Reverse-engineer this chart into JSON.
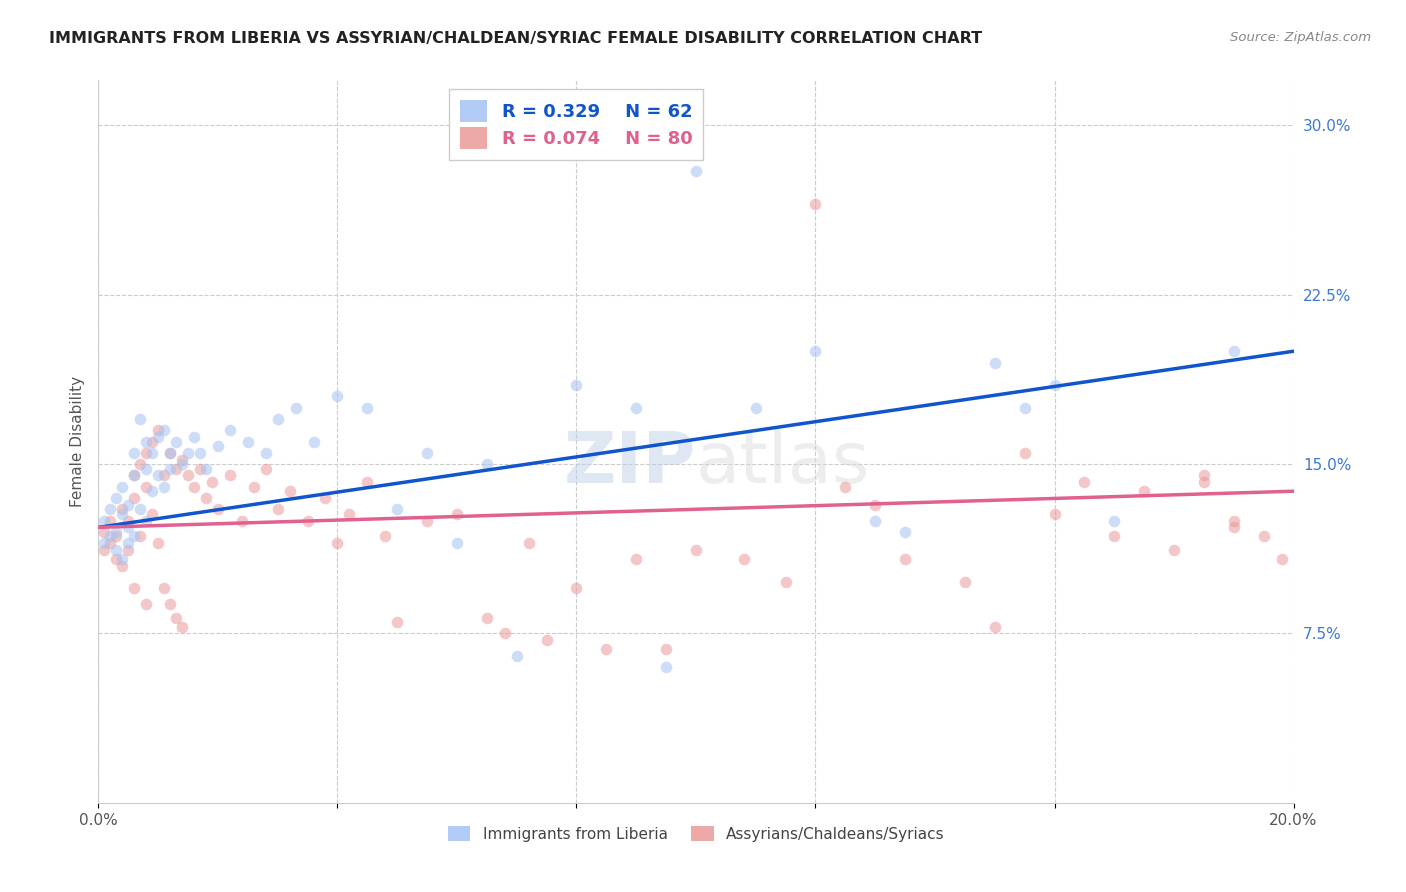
{
  "title": "IMMIGRANTS FROM LIBERIA VS ASSYRIAN/CHALDEAN/SYRIAC FEMALE DISABILITY CORRELATION CHART",
  "source": "Source: ZipAtlas.com",
  "ylabel": "Female Disability",
  "xlim": [
    0.0,
    0.2
  ],
  "ylim": [
    0.0,
    0.32
  ],
  "xtick_positions": [
    0.0,
    0.04,
    0.08,
    0.12,
    0.16,
    0.2
  ],
  "xticklabels": [
    "0.0%",
    "",
    "",
    "",
    "",
    "20.0%"
  ],
  "yticks_right": [
    0.075,
    0.15,
    0.225,
    0.3
  ],
  "ytick_labels_right": [
    "7.5%",
    "15.0%",
    "22.5%",
    "30.0%"
  ],
  "R_blue": 0.329,
  "N_blue": 62,
  "R_pink": 0.074,
  "N_pink": 80,
  "blue_color": "#a4c2f4",
  "pink_color": "#ea9999",
  "blue_line_color": "#1155cc",
  "pink_line_color": "#e06090",
  "legend_blue_label": "Immigrants from Liberia",
  "legend_pink_label": "Assyrians/Chaldeans/Syriacs",
  "blue_scatter_x": [
    0.001,
    0.001,
    0.002,
    0.002,
    0.003,
    0.003,
    0.003,
    0.004,
    0.004,
    0.004,
    0.005,
    0.005,
    0.005,
    0.006,
    0.006,
    0.006,
    0.007,
    0.007,
    0.008,
    0.008,
    0.008,
    0.009,
    0.009,
    0.01,
    0.01,
    0.011,
    0.011,
    0.012,
    0.012,
    0.013,
    0.014,
    0.015,
    0.016,
    0.017,
    0.018,
    0.02,
    0.022,
    0.025,
    0.028,
    0.03,
    0.033,
    0.036,
    0.04,
    0.045,
    0.05,
    0.055,
    0.06,
    0.065,
    0.07,
    0.08,
    0.09,
    0.095,
    0.1,
    0.11,
    0.12,
    0.13,
    0.135,
    0.15,
    0.155,
    0.16,
    0.17,
    0.19
  ],
  "blue_scatter_y": [
    0.115,
    0.125,
    0.118,
    0.13,
    0.12,
    0.112,
    0.135,
    0.108,
    0.128,
    0.14,
    0.122,
    0.132,
    0.115,
    0.118,
    0.145,
    0.155,
    0.13,
    0.17,
    0.125,
    0.148,
    0.16,
    0.138,
    0.155,
    0.145,
    0.162,
    0.14,
    0.165,
    0.148,
    0.155,
    0.16,
    0.15,
    0.155,
    0.162,
    0.155,
    0.148,
    0.158,
    0.165,
    0.16,
    0.155,
    0.17,
    0.175,
    0.16,
    0.18,
    0.175,
    0.13,
    0.155,
    0.115,
    0.15,
    0.065,
    0.185,
    0.175,
    0.06,
    0.28,
    0.175,
    0.2,
    0.125,
    0.12,
    0.195,
    0.175,
    0.185,
    0.125,
    0.2
  ],
  "pink_scatter_x": [
    0.001,
    0.001,
    0.002,
    0.002,
    0.003,
    0.003,
    0.004,
    0.004,
    0.005,
    0.005,
    0.006,
    0.006,
    0.006,
    0.007,
    0.007,
    0.008,
    0.008,
    0.008,
    0.009,
    0.009,
    0.01,
    0.01,
    0.011,
    0.011,
    0.012,
    0.012,
    0.013,
    0.013,
    0.014,
    0.014,
    0.015,
    0.016,
    0.017,
    0.018,
    0.019,
    0.02,
    0.022,
    0.024,
    0.026,
    0.028,
    0.03,
    0.032,
    0.035,
    0.038,
    0.04,
    0.042,
    0.045,
    0.048,
    0.05,
    0.055,
    0.06,
    0.065,
    0.068,
    0.072,
    0.075,
    0.08,
    0.085,
    0.09,
    0.095,
    0.1,
    0.108,
    0.115,
    0.12,
    0.125,
    0.13,
    0.135,
    0.145,
    0.15,
    0.155,
    0.16,
    0.165,
    0.17,
    0.175,
    0.18,
    0.185,
    0.19,
    0.195,
    0.198,
    0.19,
    0.185
  ],
  "pink_scatter_y": [
    0.112,
    0.12,
    0.115,
    0.125,
    0.118,
    0.108,
    0.13,
    0.105,
    0.125,
    0.112,
    0.145,
    0.135,
    0.095,
    0.15,
    0.118,
    0.155,
    0.14,
    0.088,
    0.16,
    0.128,
    0.165,
    0.115,
    0.145,
    0.095,
    0.155,
    0.088,
    0.148,
    0.082,
    0.152,
    0.078,
    0.145,
    0.14,
    0.148,
    0.135,
    0.142,
    0.13,
    0.145,
    0.125,
    0.14,
    0.148,
    0.13,
    0.138,
    0.125,
    0.135,
    0.115,
    0.128,
    0.142,
    0.118,
    0.08,
    0.125,
    0.128,
    0.082,
    0.075,
    0.115,
    0.072,
    0.095,
    0.068,
    0.108,
    0.068,
    0.112,
    0.108,
    0.098,
    0.265,
    0.14,
    0.132,
    0.108,
    0.098,
    0.078,
    0.155,
    0.128,
    0.142,
    0.118,
    0.138,
    0.112,
    0.145,
    0.125,
    0.118,
    0.108,
    0.122,
    0.142
  ],
  "background_color": "#ffffff",
  "grid_color": "#cccccc",
  "marker_size": 70,
  "marker_alpha": 0.55,
  "blue_line_start_y": 0.122,
  "blue_line_end_y": 0.2,
  "pink_line_start_y": 0.122,
  "pink_line_end_y": 0.138
}
